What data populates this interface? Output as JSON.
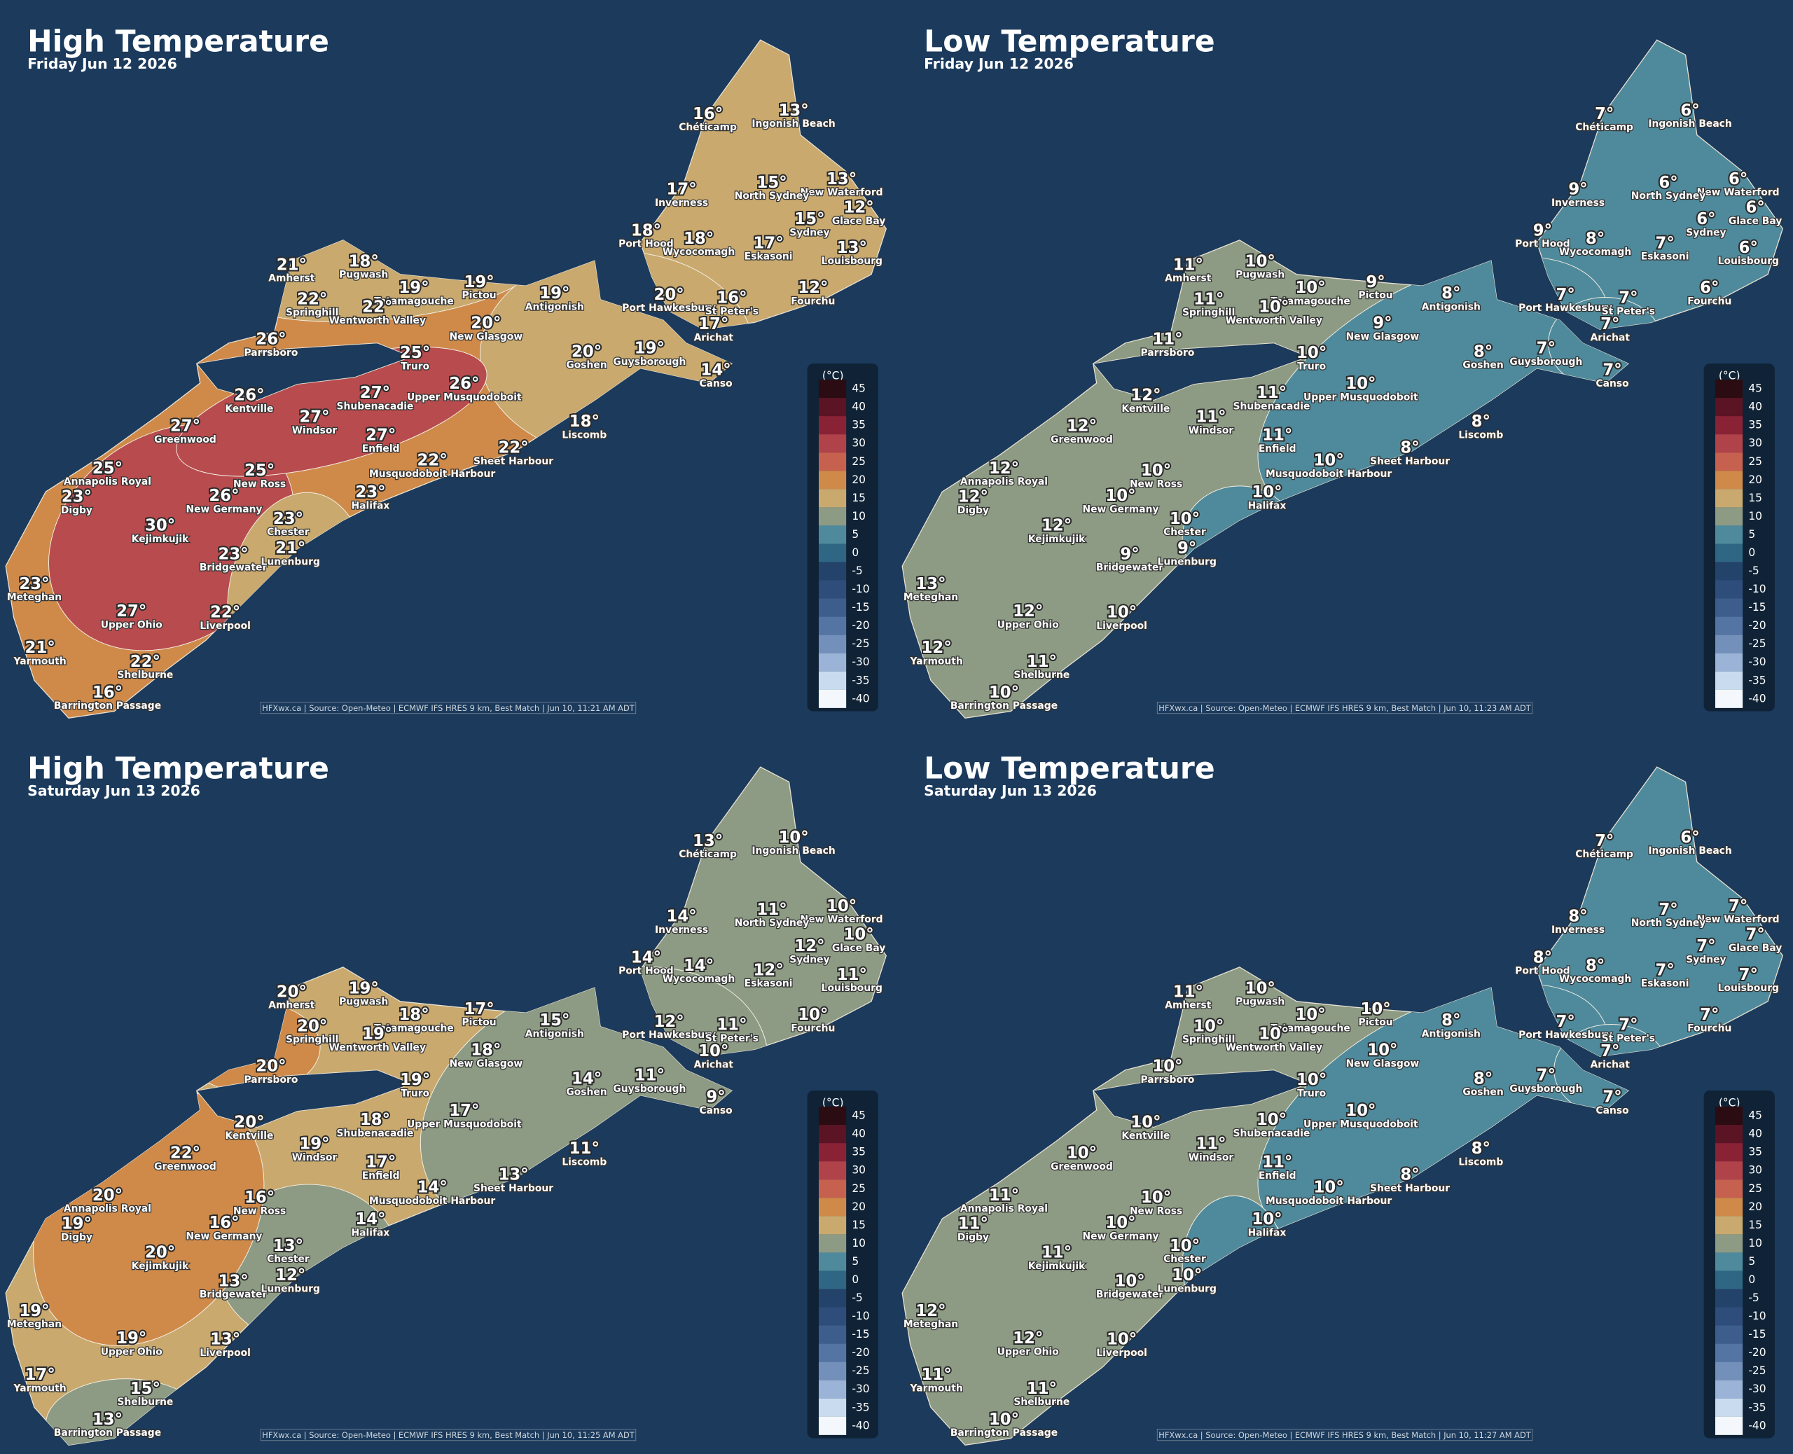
{
  "cities": [
    "Chéticamp",
    "Ingonish Beach",
    "New Waterford",
    "Inverness",
    "North Sydney",
    "Glace Bay",
    "Sydney",
    "Port Hood",
    "Wycocomagh",
    "Eskasoni",
    "Louisbourg",
    "Amherst",
    "Pugwash",
    "Tatamagouche",
    "Pictou",
    "Antigonish",
    "Springhill",
    "Wentworth Valley",
    "New Glasgow",
    "Port Hawkesbury",
    "St Peter's",
    "Fourchu",
    "Arichat",
    "Parrsboro",
    "Truro",
    "Goshen",
    "Guysborough",
    "Canso",
    "Kentville",
    "Shubenacadie",
    "Upper Musquodoboit",
    "Windsor",
    "Enfield",
    "Greenwood",
    "Liscomb",
    "Sheet Harbour",
    "Annapolis Royal",
    "New Ross",
    "Musquodoboit Harbour",
    "Digby",
    "New Germany",
    "Halifax",
    "Chester",
    "Kejimkujik",
    "Bridgewater",
    "Lunenburg",
    "Meteghan",
    "Upper Ohio",
    "Liverpool",
    "Yarmouth",
    "Shelburne",
    "Barrington Passage"
  ],
  "legend": {
    "unit": "(°C)",
    "ticks": [
      45,
      40,
      35,
      30,
      25,
      20,
      15,
      10,
      5,
      0,
      -5,
      -10,
      -15,
      -20,
      -25,
      -30,
      -35,
      -40
    ],
    "colors": [
      "#2b0c12",
      "#5a1423",
      "#8a2236",
      "#b04249",
      "#c7614f",
      "#cf8a4a",
      "#c9a96e",
      "#8d9b84",
      "#4f8a9c",
      "#2f6683",
      "#24436b",
      "#2e4d7a",
      "#3d5e8d",
      "#5474a3",
      "#7390bb",
      "#9ab3d6",
      "#c9dcef",
      "#f4f8fc"
    ]
  },
  "panels": [
    {
      "title": "High Temperature",
      "subtitle": "Friday Jun 12 2026",
      "source": "HFXwx.ca | Source: Open-Meteo | ECMWF IFS HRES 9 km, Best Match | Jun 10, 11:21 AM ADT",
      "temps": [
        "16°",
        "13°",
        "13°",
        "17°",
        "15°",
        "12°",
        "15°",
        "18°",
        "18°",
        "17°",
        "13°",
        "21°",
        "18°",
        "19°",
        "19°",
        "19°",
        "22°",
        "22°",
        "20°",
        "20°",
        "16°",
        "12°",
        "17°",
        "26°",
        "25°",
        "20°",
        "19°",
        "14°",
        "26°",
        "27°",
        "26°",
        "27°",
        "27°",
        "27°",
        "18°",
        "22°",
        "25°",
        "25°",
        "22°",
        "23°",
        "26°",
        "23°",
        "23°",
        "30°",
        "23°",
        "21°",
        "23°",
        "27°",
        "22°",
        "21°",
        "22°",
        "16°"
      ]
    },
    {
      "title": "Low Temperature",
      "subtitle": "Friday Jun 12 2026",
      "source": "HFXwx.ca | Source: Open-Meteo | ECMWF IFS HRES 9 km, Best Match | Jun 10, 11:23 AM ADT",
      "temps": [
        "7°",
        "6°",
        "6°",
        "9°",
        "6°",
        "6°",
        "6°",
        "9°",
        "8°",
        "7°",
        "6°",
        "11°",
        "10°",
        "10°",
        "9°",
        "8°",
        "11°",
        "10°",
        "9°",
        "7°",
        "7°",
        "6°",
        "7°",
        "11°",
        "10°",
        "8°",
        "7°",
        "7°",
        "12°",
        "11°",
        "10°",
        "11°",
        "11°",
        "12°",
        "8°",
        "8°",
        "12°",
        "10°",
        "10°",
        "12°",
        "10°",
        "10°",
        "10°",
        "12°",
        "9°",
        "9°",
        "13°",
        "12°",
        "10°",
        "12°",
        "11°",
        "10°"
      ]
    },
    {
      "title": "High Temperature",
      "subtitle": "Saturday Jun 13 2026",
      "source": "HFXwx.ca | Source: Open-Meteo | ECMWF IFS HRES 9 km, Best Match | Jun 10, 11:25 AM ADT",
      "temps": [
        "13°",
        "10°",
        "10°",
        "14°",
        "11°",
        "10°",
        "12°",
        "14°",
        "14°",
        "12°",
        "11°",
        "20°",
        "19°",
        "18°",
        "17°",
        "15°",
        "20°",
        "19°",
        "18°",
        "12°",
        "11°",
        "10°",
        "10°",
        "20°",
        "19°",
        "14°",
        "11°",
        "9°",
        "20°",
        "18°",
        "17°",
        "19°",
        "17°",
        "22°",
        "11°",
        "13°",
        "20°",
        "16°",
        "14°",
        "19°",
        "16°",
        "14°",
        "13°",
        "20°",
        "13°",
        "12°",
        "19°",
        "19°",
        "13°",
        "17°",
        "15°",
        "13°"
      ]
    },
    {
      "title": "Low Temperature",
      "subtitle": "Saturday Jun 13 2026",
      "source": "HFXwx.ca | Source: Open-Meteo | ECMWF IFS HRES 9 km, Best Match | Jun 10, 11:27 AM ADT",
      "temps": [
        "7°",
        "6°",
        "7°",
        "8°",
        "7°",
        "7°",
        "7°",
        "8°",
        "8°",
        "7°",
        "7°",
        "11°",
        "10°",
        "10°",
        "10°",
        "8°",
        "10°",
        "10°",
        "10°",
        "7°",
        "7°",
        "7°",
        "7°",
        "10°",
        "10°",
        "8°",
        "7°",
        "7°",
        "10°",
        "10°",
        "10°",
        "11°",
        "11°",
        "10°",
        "8°",
        "8°",
        "11°",
        "10°",
        "10°",
        "11°",
        "10°",
        "10°",
        "10°",
        "11°",
        "10°",
        "10°",
        "12°",
        "12°",
        "10°",
        "11°",
        "11°",
        "10°"
      ]
    }
  ]
}
